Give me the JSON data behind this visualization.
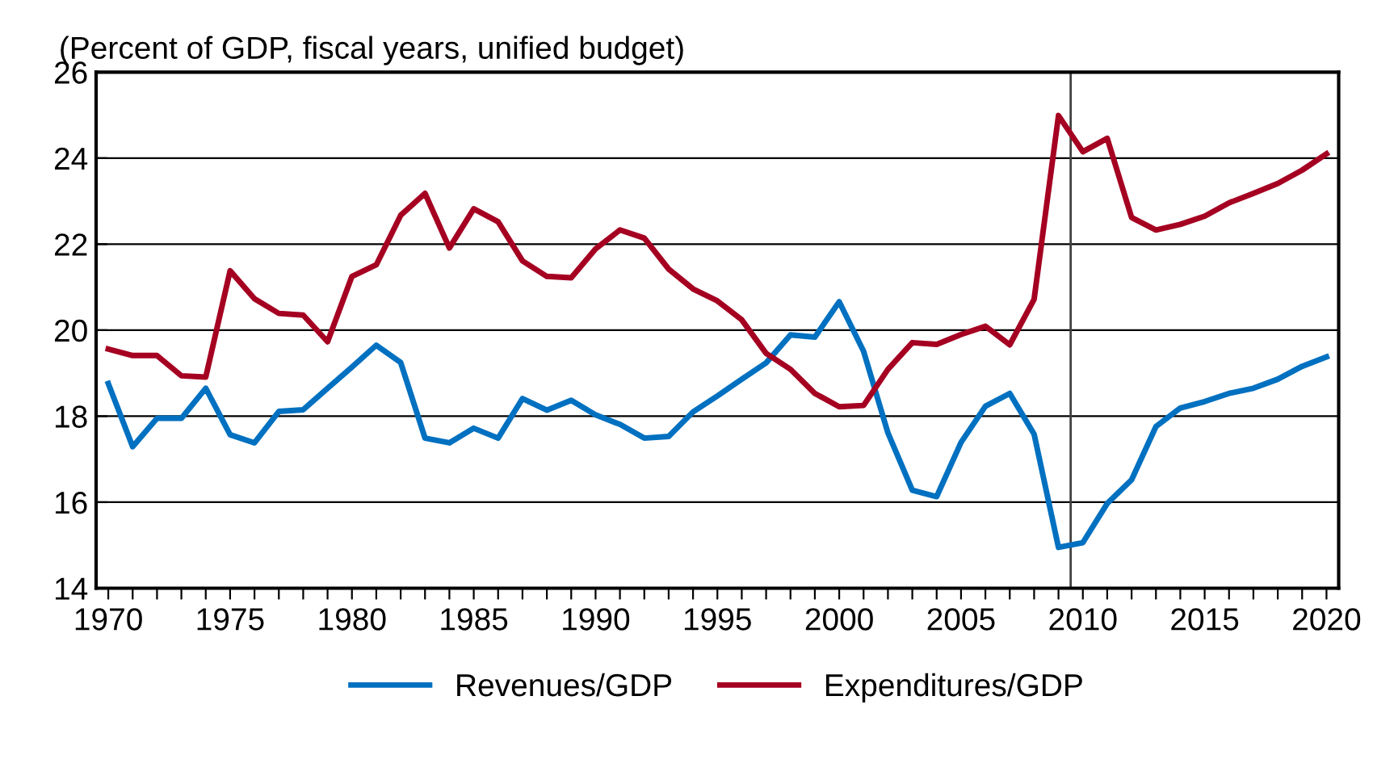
{
  "chart_data": {
    "type": "line",
    "title": "(Percent of GDP, fiscal years, unified budget)",
    "x": [
      1970,
      1971,
      1972,
      1973,
      1974,
      1975,
      1976,
      1977,
      1978,
      1979,
      1980,
      1981,
      1982,
      1983,
      1984,
      1985,
      1986,
      1987,
      1988,
      1989,
      1990,
      1991,
      1992,
      1993,
      1994,
      1995,
      1996,
      1997,
      1998,
      1999,
      2000,
      2001,
      2002,
      2003,
      2004,
      2005,
      2006,
      2007,
      2008,
      2009,
      2010,
      2011,
      2012,
      2013,
      2014,
      2015,
      2016,
      2017,
      2018,
      2019,
      2020
    ],
    "series": [
      {
        "name": "Revenues/GDP",
        "color": "#0070c0",
        "values": [
          18.76,
          17.29,
          17.95,
          17.95,
          18.65,
          17.57,
          17.38,
          18.11,
          18.15,
          18.65,
          19.14,
          19.65,
          19.25,
          17.49,
          17.38,
          17.72,
          17.49,
          18.41,
          18.14,
          18.37,
          18.03,
          17.81,
          17.49,
          17.53,
          18.1,
          18.47,
          18.86,
          19.24,
          19.89,
          19.84,
          20.66,
          19.51,
          17.61,
          16.28,
          16.13,
          17.39,
          18.23,
          18.53,
          17.58,
          14.95,
          15.06,
          15.97,
          16.52,
          17.76,
          18.19,
          18.34,
          18.53,
          18.65,
          18.86,
          19.16,
          19.38
        ]
      },
      {
        "name": "Expenditures/GDP",
        "color": "#a50021",
        "values": [
          19.56,
          19.41,
          19.41,
          18.94,
          18.91,
          21.38,
          20.73,
          20.39,
          20.35,
          19.73,
          21.25,
          21.52,
          22.67,
          23.18,
          21.91,
          22.82,
          22.52,
          21.61,
          21.25,
          21.22,
          21.89,
          22.33,
          22.14,
          21.42,
          20.96,
          20.68,
          20.24,
          19.46,
          19.09,
          18.53,
          18.22,
          18.25,
          19.09,
          19.71,
          19.67,
          19.9,
          20.09,
          19.66,
          20.72,
          24.99,
          24.15,
          24.46,
          22.62,
          22.33,
          22.46,
          22.65,
          22.96,
          23.18,
          23.41,
          23.72,
          24.1
        ]
      }
    ],
    "xlim": [
      1969.5,
      2020.5
    ],
    "xticks": [
      1970,
      {
        "value": 1971,
        "label": null
      },
      {
        "value": 1972,
        "label": null
      },
      {
        "value": 1973,
        "label": null
      },
      {
        "value": 1974,
        "label": null
      },
      1975,
      {
        "value": 1976,
        "label": null
      },
      {
        "value": 1977,
        "label": null
      },
      {
        "value": 1978,
        "label": null
      },
      {
        "value": 1979,
        "label": null
      },
      1980,
      {
        "value": 1981,
        "label": null
      },
      {
        "value": 1982,
        "label": null
      },
      {
        "value": 1983,
        "label": null
      },
      {
        "value": 1984,
        "label": null
      },
      1985,
      {
        "value": 1986,
        "label": null
      },
      {
        "value": 1987,
        "label": null
      },
      {
        "value": 1988,
        "label": null
      },
      {
        "value": 1989,
        "label": null
      },
      1990,
      {
        "value": 1991,
        "label": null
      },
      {
        "value": 1992,
        "label": null
      },
      {
        "value": 1993,
        "label": null
      },
      {
        "value": 1994,
        "label": null
      },
      1995,
      {
        "value": 1996,
        "label": null
      },
      {
        "value": 1997,
        "label": null
      },
      {
        "value": 1998,
        "label": null
      },
      {
        "value": 1999,
        "label": null
      },
      2000,
      {
        "value": 2001,
        "label": null
      },
      {
        "value": 2002,
        "label": null
      },
      {
        "value": 2003,
        "label": null
      },
      {
        "value": 2004,
        "label": null
      },
      2005,
      {
        "value": 2006,
        "label": null
      },
      {
        "value": 2007,
        "label": null
      },
      {
        "value": 2008,
        "label": null
      },
      {
        "value": 2009,
        "label": null
      },
      2010,
      {
        "value": 2011,
        "label": null
      },
      {
        "value": 2012,
        "label": null
      },
      {
        "value": 2013,
        "label": null
      },
      {
        "value": 2014,
        "label": null
      },
      2015,
      {
        "value": 2016,
        "label": null
      },
      {
        "value": 2017,
        "label": null
      },
      {
        "value": 2018,
        "label": null
      },
      {
        "value": 2019,
        "label": null
      },
      2020
    ],
    "ylim": [
      14,
      26
    ],
    "yticks": [
      14,
      16,
      18,
      20,
      22,
      24,
      26
    ],
    "ref_lines": [
      {
        "axis": "x",
        "value": 2009.5,
        "color": "#404040"
      }
    ],
    "grid": "y",
    "legend": "bottom",
    "marker": "none",
    "line_style": "solid"
  }
}
